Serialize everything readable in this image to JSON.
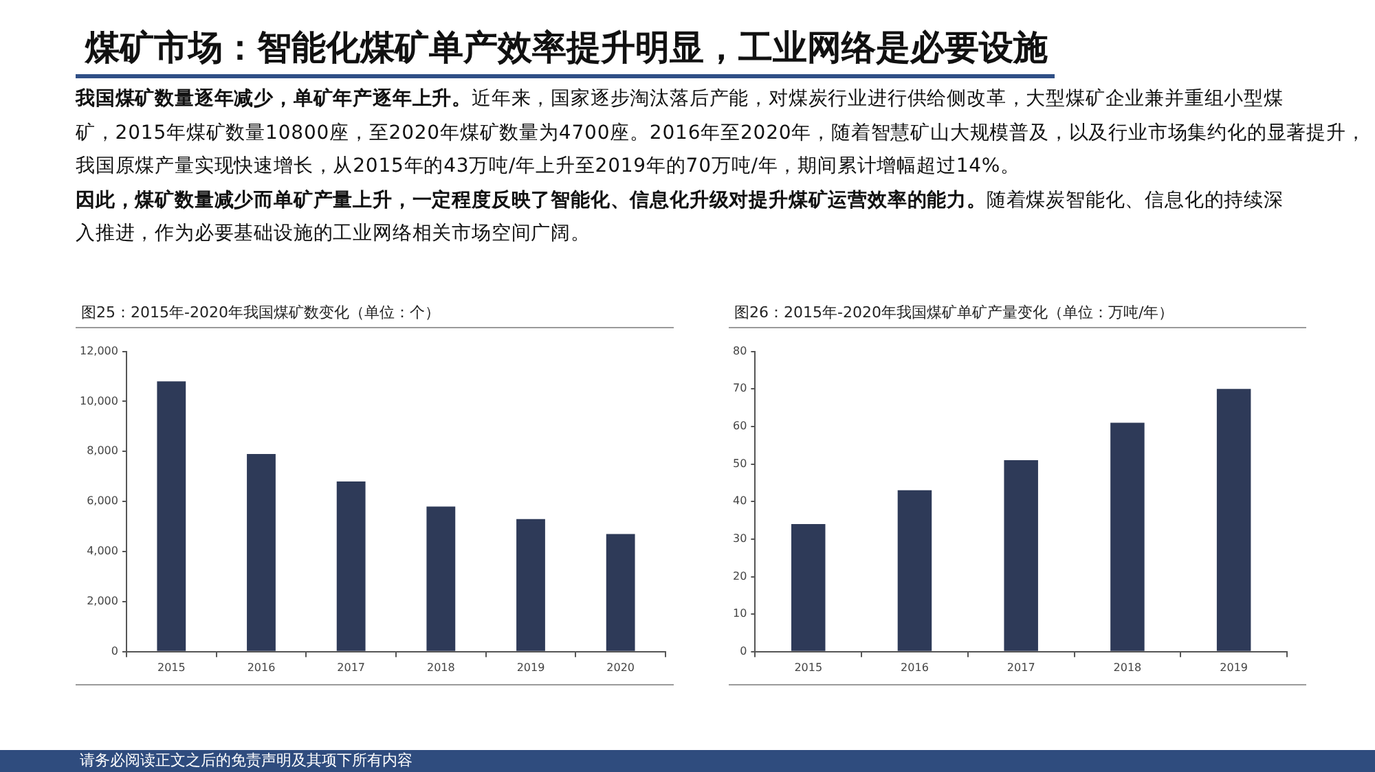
{
  "chart_data": [
    {
      "type": "other",
      "title": "煤矿市场：智能化煤矿单产效率提升明显，工业网络是必要设施",
      "annotations": [
        "我国煤矿数量逐年减少，单矿年产逐年上升。",
        "近年来，国家逐步淘汰落后产能，对煤炭行业进行供给侧改革，大型煤矿企业兼并重组小型煤",
        "矿，2015年煤矿数量10800座，至2020年煤矿数量为4700座。2016年至2020年，随着智慧矿山大规模普及，以及行业市场集约化的显著提升，",
        "我国原煤产量实现快速增长，从2015年的43万吨/年上升至2019年的70万吨/年，期间累计增幅超过14%。",
        "因此，煤矿数量减少而单矿产量上升，一定程度反映了智能化、信息化升级对提升煤矿运营效率的能力。",
        "随着煤炭智能化、信息化的持续深",
        "入推进，作为必要基础设施的工业网络相关市场空间广阔。",
        "请务必阅读正文之后的免责声明及其项下所有内容"
      ]
    },
    {
      "type": "bar",
      "title": "图25：2015年-2020年我国煤矿数变化（单位：个）",
      "categories": [
        "2015",
        "2016",
        "2017",
        "2018",
        "2019",
        "2020"
      ],
      "values": [
        10800,
        7900,
        6800,
        5800,
        5300,
        4700
      ],
      "color": "#2e3a58",
      "ylim": [
        0,
        12000
      ],
      "yticks": [
        0,
        {
          "value": 2000,
          "label": "2,000"
        },
        {
          "value": 4000,
          "label": "4,000"
        },
        {
          "value": 6000,
          "label": "6,000"
        },
        {
          "value": 8000,
          "label": "8,000"
        },
        {
          "value": 10000,
          "label": "10,000"
        },
        {
          "value": 12000,
          "label": "12,000"
        }
      ]
    },
    {
      "type": "bar",
      "title": "图26：2015年-2020年我国煤矿单矿产量变化（单位：万吨/年）",
      "categories": [
        "2015",
        "2016",
        "2017",
        "2018",
        "2019"
      ],
      "values": [
        34,
        43,
        51,
        61,
        70
      ],
      "color": "#2e3a58",
      "ylim": [
        0,
        80
      ],
      "yticks": [
        0,
        10,
        20,
        30,
        40,
        50,
        60,
        70,
        80
      ]
    }
  ]
}
